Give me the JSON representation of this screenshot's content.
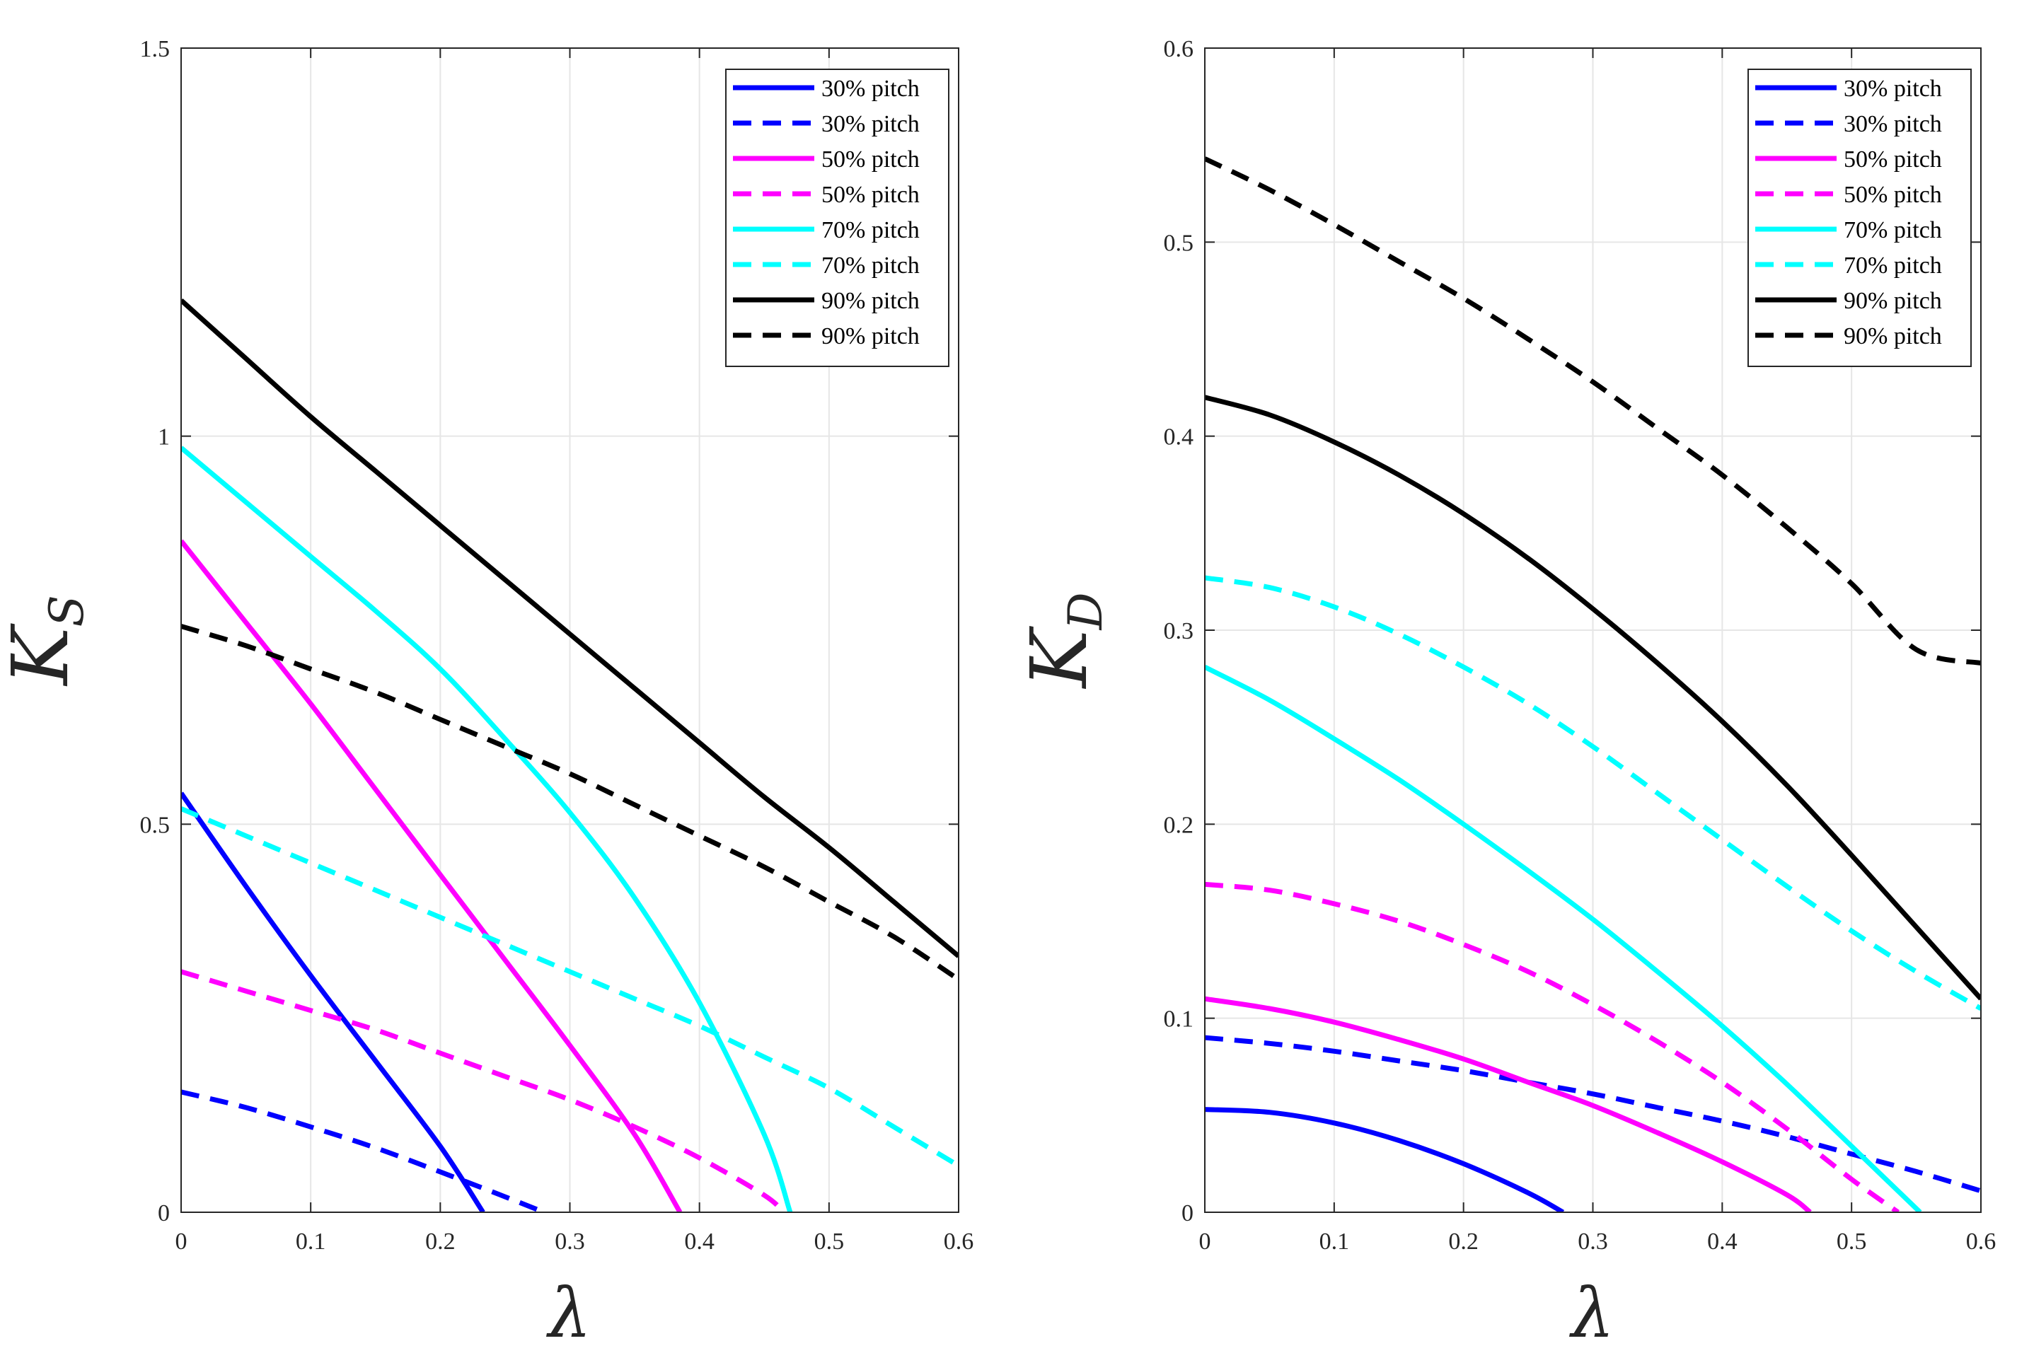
{
  "chart_data": [
    {
      "type": "line",
      "xlabel": "λ",
      "ylabel": "K",
      "ylabel_sub": "S",
      "xlim": [
        0,
        0.6
      ],
      "ylim": [
        0,
        1.5
      ],
      "xticks": [
        0,
        0.1,
        0.2,
        0.3,
        0.4,
        0.5,
        0.6
      ],
      "xtick_labels": [
        "0",
        "0.1",
        "0.2",
        "0.3",
        "0.4",
        "0.5",
        "0.6"
      ],
      "yticks": [
        0,
        0.5,
        1,
        1.5
      ],
      "ytick_labels": [
        "0",
        "0.5",
        "1",
        "1.5"
      ],
      "grid": true,
      "legend_position": "top-right",
      "series": [
        {
          "name": "30% pitch",
          "color": "#0000ff",
          "style": "solid",
          "x": [
            0,
            0.05,
            0.1,
            0.15,
            0.2,
            0.233
          ],
          "y": [
            0.54,
            0.42,
            0.305,
            0.195,
            0.085,
            0.0
          ]
        },
        {
          "name": "30% pitch",
          "color": "#0000ff",
          "style": "dashed",
          "x": [
            0,
            0.05,
            0.1,
            0.15,
            0.2,
            0.25,
            0.28
          ],
          "y": [
            0.155,
            0.135,
            0.11,
            0.083,
            0.052,
            0.02,
            0.0
          ]
        },
        {
          "name": "50% pitch",
          "color": "#ff00ff",
          "style": "solid",
          "x": [
            0,
            0.05,
            0.1,
            0.15,
            0.2,
            0.25,
            0.3,
            0.35,
            0.385
          ],
          "y": [
            0.865,
            0.76,
            0.655,
            0.545,
            0.435,
            0.325,
            0.215,
            0.1,
            0.0
          ]
        },
        {
          "name": "50% pitch",
          "color": "#ff00ff",
          "style": "dashed",
          "x": [
            0,
            0.05,
            0.1,
            0.15,
            0.2,
            0.25,
            0.3,
            0.35,
            0.4,
            0.45,
            0.465
          ],
          "y": [
            0.31,
            0.285,
            0.26,
            0.235,
            0.205,
            0.175,
            0.145,
            0.11,
            0.07,
            0.022,
            0.0
          ]
        },
        {
          "name": "70% pitch",
          "color": "#00ffff",
          "style": "solid",
          "x": [
            0,
            0.05,
            0.1,
            0.15,
            0.2,
            0.25,
            0.3,
            0.35,
            0.4,
            0.45,
            0.47
          ],
          "y": [
            0.985,
            0.915,
            0.845,
            0.775,
            0.7,
            0.61,
            0.515,
            0.405,
            0.27,
            0.1,
            0.0
          ]
        },
        {
          "name": "70% pitch",
          "color": "#00ffff",
          "style": "dashed",
          "x": [
            0,
            0.05,
            0.1,
            0.15,
            0.2,
            0.25,
            0.3,
            0.35,
            0.4,
            0.45,
            0.5,
            0.55,
            0.6
          ],
          "y": [
            0.52,
            0.485,
            0.45,
            0.415,
            0.38,
            0.345,
            0.31,
            0.275,
            0.24,
            0.2,
            0.16,
            0.11,
            0.06
          ]
        },
        {
          "name": "90% pitch",
          "color": "#000000",
          "style": "solid",
          "x": [
            0,
            0.05,
            0.1,
            0.15,
            0.2,
            0.25,
            0.3,
            0.35,
            0.4,
            0.45,
            0.5,
            0.55,
            0.6
          ],
          "y": [
            1.175,
            1.1,
            1.025,
            0.955,
            0.885,
            0.815,
            0.745,
            0.675,
            0.605,
            0.535,
            0.47,
            0.4,
            0.33
          ]
        },
        {
          "name": "90% pitch",
          "color": "#000000",
          "style": "dashed",
          "x": [
            0,
            0.05,
            0.1,
            0.15,
            0.2,
            0.25,
            0.3,
            0.35,
            0.4,
            0.45,
            0.5,
            0.55,
            0.6
          ],
          "y": [
            0.755,
            0.73,
            0.7,
            0.67,
            0.635,
            0.6,
            0.565,
            0.525,
            0.485,
            0.445,
            0.4,
            0.355,
            0.3
          ]
        }
      ]
    },
    {
      "type": "line",
      "xlabel": "λ",
      "ylabel": "K",
      "ylabel_sub": "D",
      "xlim": [
        0,
        0.6
      ],
      "ylim": [
        0,
        0.6
      ],
      "xticks": [
        0,
        0.1,
        0.2,
        0.3,
        0.4,
        0.5,
        0.6
      ],
      "xtick_labels": [
        "0",
        "0.1",
        "0.2",
        "0.3",
        "0.4",
        "0.5",
        "0.6"
      ],
      "yticks": [
        0,
        0.1,
        0.2,
        0.3,
        0.4,
        0.5,
        0.6
      ],
      "ytick_labels": [
        "0",
        "0.1",
        "0.2",
        "0.3",
        "0.4",
        "0.5",
        "0.6"
      ],
      "grid": true,
      "legend_position": "top-right",
      "series": [
        {
          "name": "30% pitch",
          "color": "#0000ff",
          "style": "solid",
          "x": [
            0,
            0.05,
            0.1,
            0.15,
            0.2,
            0.25,
            0.277
          ],
          "y": [
            0.053,
            0.0515,
            0.046,
            0.037,
            0.025,
            0.01,
            0.0
          ]
        },
        {
          "name": "30% pitch",
          "color": "#0000ff",
          "style": "dashed",
          "x": [
            0,
            0.05,
            0.1,
            0.15,
            0.2,
            0.25,
            0.3,
            0.35,
            0.4,
            0.45,
            0.5,
            0.55,
            0.6
          ],
          "y": [
            0.09,
            0.087,
            0.083,
            0.078,
            0.073,
            0.067,
            0.061,
            0.054,
            0.047,
            0.039,
            0.03,
            0.021,
            0.011
          ]
        },
        {
          "name": "50% pitch",
          "color": "#ff00ff",
          "style": "solid",
          "x": [
            0,
            0.05,
            0.1,
            0.15,
            0.2,
            0.25,
            0.3,
            0.35,
            0.4,
            0.45,
            0.468
          ],
          "y": [
            0.11,
            0.105,
            0.098,
            0.089,
            0.079,
            0.067,
            0.055,
            0.041,
            0.026,
            0.009,
            0.0
          ]
        },
        {
          "name": "50% pitch",
          "color": "#ff00ff",
          "style": "dashed",
          "x": [
            0,
            0.05,
            0.1,
            0.15,
            0.2,
            0.25,
            0.3,
            0.35,
            0.4,
            0.45,
            0.5,
            0.536
          ],
          "y": [
            0.169,
            0.166,
            0.159,
            0.15,
            0.138,
            0.124,
            0.107,
            0.088,
            0.067,
            0.043,
            0.017,
            0.0
          ]
        },
        {
          "name": "70% pitch",
          "color": "#00ffff",
          "style": "solid",
          "x": [
            0,
            0.05,
            0.1,
            0.15,
            0.2,
            0.25,
            0.3,
            0.35,
            0.4,
            0.45,
            0.5,
            0.553
          ],
          "y": [
            0.281,
            0.264,
            0.244,
            0.223,
            0.2,
            0.176,
            0.151,
            0.124,
            0.096,
            0.066,
            0.034,
            0.0
          ]
        },
        {
          "name": "70% pitch",
          "color": "#00ffff",
          "style": "dashed",
          "x": [
            0,
            0.05,
            0.1,
            0.15,
            0.2,
            0.25,
            0.3,
            0.35,
            0.4,
            0.45,
            0.5,
            0.55,
            0.6
          ],
          "y": [
            0.327,
            0.322,
            0.312,
            0.298,
            0.281,
            0.262,
            0.24,
            0.216,
            0.192,
            0.168,
            0.145,
            0.124,
            0.105
          ]
        },
        {
          "name": "90% pitch",
          "color": "#000000",
          "style": "solid",
          "x": [
            0,
            0.05,
            0.1,
            0.15,
            0.2,
            0.25,
            0.3,
            0.35,
            0.4,
            0.45,
            0.5,
            0.55,
            0.6
          ],
          "y": [
            0.42,
            0.411,
            0.397,
            0.38,
            0.36,
            0.337,
            0.311,
            0.283,
            0.253,
            0.22,
            0.184,
            0.147,
            0.11
          ]
        },
        {
          "name": "90% pitch",
          "color": "#000000",
          "style": "dashed",
          "x": [
            0,
            0.05,
            0.1,
            0.15,
            0.2,
            0.25,
            0.3,
            0.35,
            0.4,
            0.45,
            0.5,
            0.55,
            0.6
          ],
          "y": [
            0.543,
            0.527,
            0.509,
            0.49,
            0.471,
            0.45,
            0.428,
            0.404,
            0.38,
            0.353,
            0.324,
            0.29,
            0.283
          ]
        }
      ]
    }
  ]
}
